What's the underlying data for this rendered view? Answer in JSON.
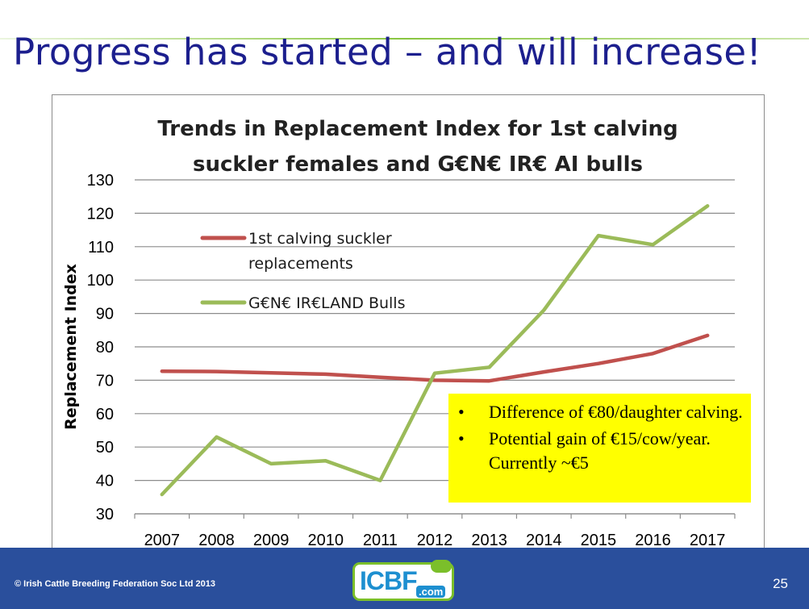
{
  "slide": {
    "title": "Progress has started – and will increase!",
    "page_number": "25",
    "copyright": "© Irish Cattle Breeding Federation Soc Ltd 2013",
    "logo_text": "ICBF",
    "logo_suffix": ".com"
  },
  "callout": {
    "items": [
      "Difference of €80/daughter calving.",
      "Potential gain of €15/cow/year. Currently ~€5"
    ],
    "bullet": "•",
    "background": "#ffff00"
  },
  "colors": {
    "title": "#1c1f8e",
    "footer": "#2a4f9c",
    "suckler_series": "#c0504d",
    "bulls_series": "#9bbb59",
    "logo_green": "#7bbf2a",
    "logo_blue": "#1d8fd0"
  },
  "chart_data": {
    "type": "line",
    "title_lines": [
      "Trends in Replacement Index for 1st calving",
      "suckler females and G€N€ IR€ AI bulls"
    ],
    "ylabel": "Replacement Index",
    "xlabel": "",
    "x": [
      "2007",
      "2008",
      "2009",
      "2010",
      "2011",
      "2012",
      "2013",
      "2014",
      "2015",
      "2016",
      "2017"
    ],
    "ylim": [
      30,
      130
    ],
    "yticks": [
      30,
      40,
      50,
      60,
      70,
      80,
      90,
      100,
      110,
      120,
      130
    ],
    "grid": true,
    "legend_position": "upper-left, inside plot",
    "series": [
      {
        "name": "1st calving suckler replacements",
        "legend_lines": [
          "1st calving suckler",
          "replacements"
        ],
        "color": "#c0504d",
        "values": [
          72.7,
          72.6,
          72.2,
          71.8,
          70.9,
          70.0,
          69.8,
          72.5,
          75.0,
          78.0,
          83.4
        ]
      },
      {
        "name": "G€N€ IR€LAND Bulls",
        "legend_lines": [
          "G€N€ IR€LAND Bulls"
        ],
        "color": "#9bbb59",
        "values": [
          35.8,
          53.0,
          45.0,
          45.9,
          40.0,
          72.1,
          73.9,
          91.0,
          113.3,
          110.6,
          122.2
        ]
      }
    ]
  }
}
